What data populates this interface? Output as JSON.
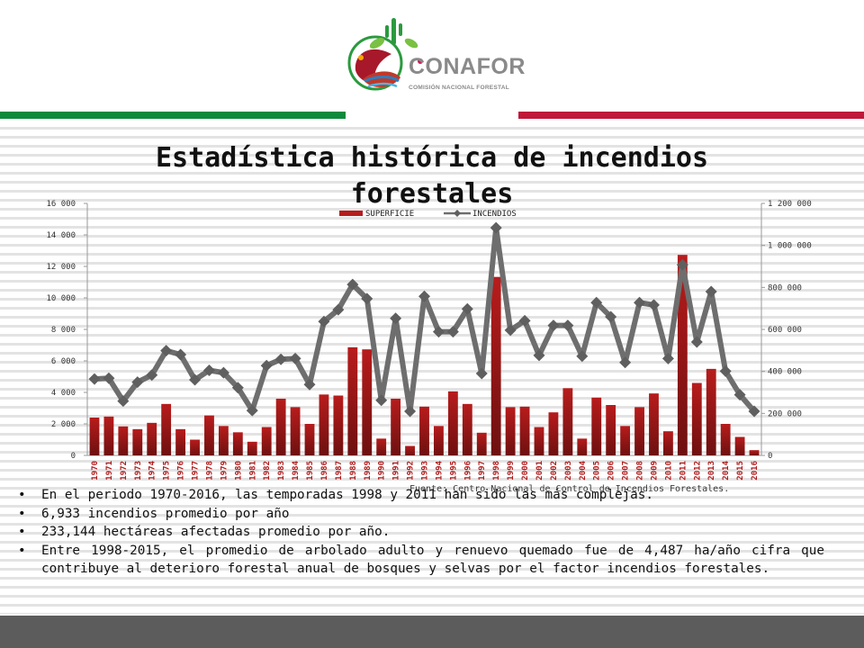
{
  "logo": {
    "name": "CONAFOR",
    "subtitle": "COMISIÓN NACIONAL FORESTAL"
  },
  "page_title": "Estadística histórica de incendios forestales",
  "source_note": "Fuente: Centro Nacional de Control de Incendios Forestales.",
  "bullets": [
    "En el periodo 1970-2016, las temporadas 1998 y 2011 han sido las más complejas.",
    "6,933 incendios promedio por año",
    "233,144 hectáreas afectadas promedio por año.",
    "Entre 1998-2015, el promedio de arbolado adulto y renuevo quemado fue de 4,487 ha/año cifra que contribuye al deterioro forestal  anual de bosques y selvas por el factor incendios forestales."
  ],
  "colors": {
    "bar": "#b81c1c",
    "line": "#6e6e6e",
    "green_band": "#0f8a3c",
    "red_band": "#c01839"
  },
  "chart_data": {
    "type": "bar",
    "legend": {
      "placement": "top-center",
      "entries": [
        "SUPERFICIE",
        "INCENDIOS"
      ]
    },
    "x": [
      "1970",
      "1971",
      "1972",
      "1973",
      "1974",
      "1975",
      "1976",
      "1977",
      "1978",
      "1979",
      "1980",
      "1981",
      "1982",
      "1983",
      "1984",
      "1985",
      "1986",
      "1987",
      "1988",
      "1989",
      "1990",
      "1991",
      "1992",
      "1993",
      "1994",
      "1995",
      "1996",
      "1997",
      "1998",
      "1999",
      "2000",
      "2001",
      "2002",
      "2003",
      "2004",
      "2005",
      "2006",
      "2007",
      "2008",
      "2009",
      "2010",
      "2011",
      "2012",
      "2013",
      "2014",
      "2015",
      "2016"
    ],
    "y_left": {
      "ticks": [
        "0",
        "2 000",
        "4 000",
        "6 000",
        "8 000",
        "10 000",
        "12 000",
        "14 000",
        "16 000"
      ],
      "range": [
        0,
        16000
      ]
    },
    "y_right": {
      "ticks": [
        "0",
        "200 000",
        "400 000",
        "600 000",
        "800 000",
        "1 000 000",
        "1 200 000"
      ],
      "range": [
        0,
        1200000
      ]
    },
    "series": [
      {
        "name": "SUPERFICIE",
        "kind": "bar",
        "axis": "right",
        "values": [
          180000,
          185000,
          138000,
          125000,
          155000,
          245000,
          125000,
          75000,
          190000,
          140000,
          110000,
          65000,
          135000,
          270000,
          230000,
          150000,
          290000,
          285000,
          515000,
          505000,
          80000,
          270000,
          45000,
          232000,
          140000,
          305000,
          245000,
          108000,
          850000,
          230000,
          232000,
          135000,
          205000,
          320000,
          80000,
          275000,
          240000,
          140000,
          230000,
          295000,
          115000,
          955000,
          345000,
          412000,
          150000,
          88000,
          25000
        ]
      },
      {
        "name": "INCENDIOS",
        "kind": "line",
        "axis": "left",
        "values": [
          4850,
          4900,
          3450,
          4650,
          5100,
          6650,
          6400,
          4800,
          5400,
          5250,
          4300,
          2850,
          5700,
          6100,
          6150,
          4500,
          8500,
          9250,
          10850,
          9950,
          3500,
          8700,
          2800,
          10100,
          7850,
          7850,
          9300,
          5200,
          14450,
          7950,
          8550,
          6350,
          8250,
          8250,
          6300,
          9700,
          8800,
          5900,
          9700,
          9550,
          6150,
          12100,
          7200,
          10400,
          5350,
          3850,
          2800
        ]
      }
    ]
  }
}
